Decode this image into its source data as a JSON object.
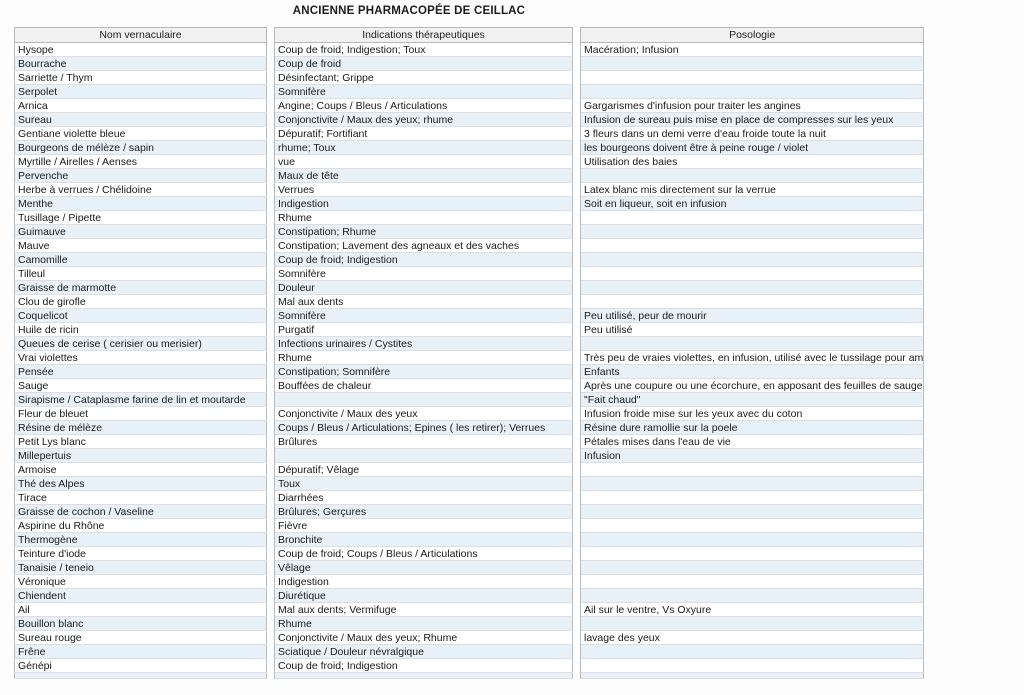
{
  "title": "ANCIENNE PHARMACOPÉE DE CEILLAC",
  "table": {
    "columns": [
      "Nom vernaculaire",
      "Indications thérapeutiques",
      "Posologie"
    ],
    "rows": [
      {
        "nom": "Hysope",
        "indications": "Coup de froid; Indigestion; Toux",
        "posologie": "Macération; Infusion"
      },
      {
        "nom": "Bourrache",
        "indications": "Coup de froid",
        "posologie": ""
      },
      {
        "nom": "Sarriette / Thym",
        "indications": "Désinfectant; Grippe",
        "posologie": ""
      },
      {
        "nom": "Serpolet",
        "indications": "Somnifère",
        "posologie": ""
      },
      {
        "nom": "Arnica",
        "indications": "Angine; Coups / Bleus / Articulations",
        "posologie": "Gargarismes d'infusion pour traiter les angines"
      },
      {
        "nom": "Sureau",
        "indications": "Conjonctivite / Maux des yeux; rhume",
        "posologie": "Infusion de sureau puis mise en place de compresses sur les yeux"
      },
      {
        "nom": "Gentiane violette bleue",
        "indications": "Dépuratif; Fortifiant",
        "posologie": "3 fleurs dans un demi verre d'eau froide toute la nuit"
      },
      {
        "nom": "Bourgeons de mélèze / sapin",
        "indications": "rhume; Toux",
        "posologie": "les bourgeons doivent être à peine rouge / violet"
      },
      {
        "nom": "Myrtille / Airelles / Aenses",
        "indications": "vue",
        "posologie": "Utilisation des baies"
      },
      {
        "nom": "Pervenche",
        "indications": "Maux de tête",
        "posologie": ""
      },
      {
        "nom": "Herbe à verrues / Chélidoine",
        "indications": "Verrues",
        "posologie": "Latex blanc mis directement sur la verrue"
      },
      {
        "nom": "Menthe",
        "indications": "Indigestion",
        "posologie": "Soit en liqueur, soit en infusion"
      },
      {
        "nom": "Tusillage / Pipette",
        "indications": "Rhume",
        "posologie": ""
      },
      {
        "nom": "Guimauve",
        "indications": "Constipation; Rhume",
        "posologie": ""
      },
      {
        "nom": "Mauve",
        "indications": "Constipation; Lavement des agneaux et des vaches",
        "posologie": ""
      },
      {
        "nom": "Camomille",
        "indications": "Coup de froid; Indigestion",
        "posologie": ""
      },
      {
        "nom": "Tilleul",
        "indications": "Somnifère",
        "posologie": ""
      },
      {
        "nom": "Graisse de marmotte",
        "indications": "Douleur",
        "posologie": ""
      },
      {
        "nom": "Clou de girofle",
        "indications": "Mal aux dents",
        "posologie": ""
      },
      {
        "nom": "Coquelicot",
        "indications": "Somnifère",
        "posologie": "Peu utilisé, peur de mourir"
      },
      {
        "nom": "Huile de ricin",
        "indications": "Purgatif",
        "posologie": "Peu utilisé"
      },
      {
        "nom": "Queues de cerise ( cerisier ou merisier)",
        "indications": "Infections urinaires / Cystites",
        "posologie": ""
      },
      {
        "nom": "Vrai violettes",
        "indications": "Rhume",
        "posologie": "Très peu de vraies violettes, en infusion, utilisé avec le tussilage pour am"
      },
      {
        "nom": "Pensée",
        "indications": "Constipation; Somnifère",
        "posologie": "Enfants"
      },
      {
        "nom": "Sauge",
        "indications": "Bouffées de chaleur",
        "posologie": "Après une coupure ou une écorchure, en apposant des feuilles de sauge"
      },
      {
        "nom": "Sirapisme / Cataplasme farine de lin et moutarde",
        "indications": "",
        "posologie": "\"Fait chaud\""
      },
      {
        "nom": "Fleur de bleuet",
        "indications": "Conjonctivite / Maux des yeux",
        "posologie": "Infusion froide mise sur les yeux avec du coton"
      },
      {
        "nom": "Résine de mélèze",
        "indications": "Coups / Bleus / Articulations; Epines ( les retirer); Verrues",
        "posologie": "Résine dure ramollie sur la poele"
      },
      {
        "nom": "Petit Lys blanc",
        "indications": "Brûlures",
        "posologie": "Pétales mises dans l'eau de vie"
      },
      {
        "nom": "Millepertuis",
        "indications": "",
        "posologie": "Infusion"
      },
      {
        "nom": "Armoise",
        "indications": "Dépuratif; Vêlage",
        "posologie": ""
      },
      {
        "nom": "Thé des Alpes",
        "indications": "Toux",
        "posologie": ""
      },
      {
        "nom": "Tirace",
        "indications": "Diarrhées",
        "posologie": ""
      },
      {
        "nom": "Graisse de cochon / Vaseline",
        "indications": "Brûlures; Gerçures",
        "posologie": ""
      },
      {
        "nom": "Aspirine du Rhône",
        "indications": "Fièvre",
        "posologie": ""
      },
      {
        "nom": "Thermogène",
        "indications": "Bronchite",
        "posologie": ""
      },
      {
        "nom": "Teinture d'iode",
        "indications": "Coup de froid; Coups / Bleus / Articulations",
        "posologie": ""
      },
      {
        "nom": "Tanaisie / teneio",
        "indications": "Vêlage",
        "posologie": ""
      },
      {
        "nom": "Véronique",
        "indications": "Indigestion",
        "posologie": ""
      },
      {
        "nom": "Chiendent",
        "indications": "Diurétique",
        "posologie": ""
      },
      {
        "nom": "Ail",
        "indications": "Mal aux dents; Vermifuge",
        "posologie": "Ail sur le ventre, Vs Oxyure"
      },
      {
        "nom": "Bouillon blanc",
        "indications": "Rhume",
        "posologie": ""
      },
      {
        "nom": "Sureau rouge",
        "indications": "Conjonctivite / Maux des yeux; Rhume",
        "posologie": "lavage des yeux"
      },
      {
        "nom": "Frêne",
        "indications": "Sciatique / Douleur névralgique",
        "posologie": ""
      },
      {
        "nom": "Génépi",
        "indications": "Coup de froid; Indigestion",
        "posologie": ""
      }
    ]
  }
}
